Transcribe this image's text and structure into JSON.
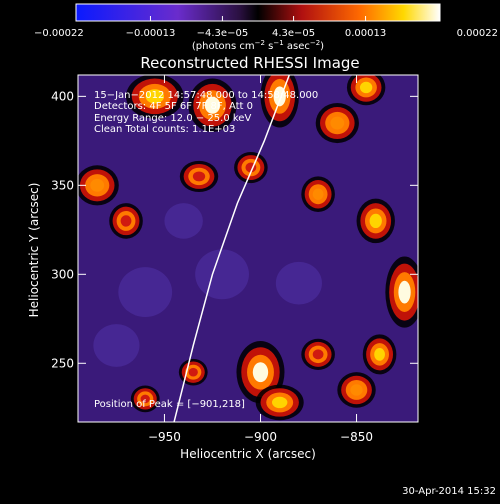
{
  "chart_data": {
    "type": "heatmap",
    "title": "Reconstructed RHESSI Image",
    "xlabel": "Heliocentric X (arcsec)",
    "ylabel": "Heliocentric Y (arcsec)",
    "xlim": [
      -995,
      -818
    ],
    "ylim": [
      217,
      412
    ],
    "x_ticks": [
      -950,
      -900,
      -850
    ],
    "x_tick_labels": [
      "−950",
      "−900",
      "−850"
    ],
    "y_ticks": [
      250,
      300,
      350,
      400
    ],
    "y_tick_labels": [
      "250",
      "300",
      "350",
      "400"
    ],
    "colorbar": {
      "min": -0.00022,
      "max": 0.00022,
      "tick_values": [
        -0.00022,
        -0.00013,
        -4.3e-05,
        4.3e-05,
        0.00013,
        0.00022
      ],
      "tick_labels": [
        "−0.00022",
        "−0.00013",
        "−4.3e−05",
        "4.3e−05",
        "0.00013",
        "0.00022"
      ],
      "units_main": "(photons cm",
      "units_sup1": "−2",
      "units_mid": " s",
      "units_sup2": "−1",
      "units_tail": " asec",
      "units_sup3": "−2",
      "units_close": ")"
    },
    "annotations": [
      "15−Jan−2012 14:57:48.000 to 14:58:48.000",
      "Detectors: 4F 5F 6F 7F 8F, Att 0",
      "Energy Range: 12.0 − 25.0 keV",
      "Clean    Total counts: 1.1E+03"
    ],
    "peak_label": "Position of Peak = [−901,218]",
    "peak": [
      -901,
      218
    ],
    "limb": {
      "description_hidden": true,
      "points": [
        [
          -945,
          217
        ],
        [
          -935,
          260
        ],
        [
          -925,
          300
        ],
        [
          -912,
          340
        ],
        [
          -898,
          375
        ],
        [
          -885,
          412
        ]
      ]
    },
    "sources": [
      {
        "x": -955,
        "y": 400,
        "amp": 0.00018,
        "sx": 12,
        "sy": 10
      },
      {
        "x": -925,
        "y": 395,
        "amp": 0.00022,
        "sx": 10,
        "sy": 12
      },
      {
        "x": -890,
        "y": 400,
        "amp": 0.0002,
        "sx": 8,
        "sy": 14
      },
      {
        "x": -860,
        "y": 385,
        "amp": 0.00016,
        "sx": 9,
        "sy": 9
      },
      {
        "x": -845,
        "y": 405,
        "amp": 0.00017,
        "sx": 8,
        "sy": 8
      },
      {
        "x": -985,
        "y": 350,
        "amp": 0.00015,
        "sx": 9,
        "sy": 9
      },
      {
        "x": -970,
        "y": 330,
        "amp": 0.00012,
        "sx": 7,
        "sy": 8
      },
      {
        "x": -932,
        "y": 355,
        "amp": 0.00013,
        "sx": 8,
        "sy": 7
      },
      {
        "x": -905,
        "y": 360,
        "amp": 0.00012,
        "sx": 7,
        "sy": 7
      },
      {
        "x": -870,
        "y": 345,
        "amp": 0.00014,
        "sx": 7,
        "sy": 8
      },
      {
        "x": -840,
        "y": 330,
        "amp": 0.00018,
        "sx": 8,
        "sy": 10
      },
      {
        "x": -825,
        "y": 290,
        "amp": 0.0002,
        "sx": 8,
        "sy": 16
      },
      {
        "x": -838,
        "y": 255,
        "amp": 0.00017,
        "sx": 7,
        "sy": 9
      },
      {
        "x": -850,
        "y": 235,
        "amp": 0.00015,
        "sx": 8,
        "sy": 8
      },
      {
        "x": -900,
        "y": 245,
        "amp": 0.00021,
        "sx": 10,
        "sy": 14
      },
      {
        "x": -890,
        "y": 228,
        "amp": 0.00019,
        "sx": 10,
        "sy": 8
      },
      {
        "x": -870,
        "y": 255,
        "amp": 0.00012,
        "sx": 7,
        "sy": 7
      },
      {
        "x": -935,
        "y": 245,
        "amp": 0.0001,
        "sx": 6,
        "sy": 6
      },
      {
        "x": -960,
        "y": 230,
        "amp": 8e-05,
        "sx": 6,
        "sy": 6
      },
      {
        "x": -920,
        "y": 300,
        "amp": -0.0001,
        "sx": 14,
        "sy": 14
      },
      {
        "x": -960,
        "y": 290,
        "amp": -0.0001,
        "sx": 14,
        "sy": 14
      },
      {
        "x": -880,
        "y": 295,
        "amp": -8e-05,
        "sx": 12,
        "sy": 12
      },
      {
        "x": -975,
        "y": 260,
        "amp": -9e-05,
        "sx": 12,
        "sy": 12
      },
      {
        "x": -940,
        "y": 330,
        "amp": -8e-05,
        "sx": 10,
        "sy": 10
      }
    ]
  },
  "footer": {
    "timestamp": "30-Apr-2014 15:32"
  }
}
